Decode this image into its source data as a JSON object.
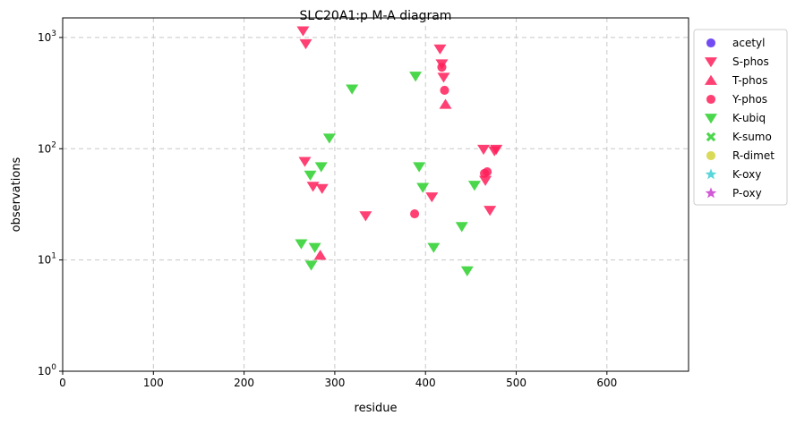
{
  "chart_data": {
    "type": "scatter",
    "title": "SLC20A1:p M-A diagram",
    "xlabel": "residue",
    "ylabel": "observations",
    "xlim": [
      0,
      690
    ],
    "ylim": [
      1,
      1500
    ],
    "yscale": "log",
    "grid": true,
    "legend_position": "outside-right",
    "x_ticks": [
      0,
      100,
      200,
      300,
      400,
      500,
      600
    ],
    "y_ticks": [
      {
        "value": 1,
        "base": "10",
        "exp": "0"
      },
      {
        "value": 10,
        "base": "10",
        "exp": "1"
      },
      {
        "value": 100,
        "base": "10",
        "exp": "2"
      },
      {
        "value": 1000,
        "base": "10",
        "exp": "3"
      }
    ],
    "series": [
      {
        "name": "acetyl",
        "marker": "circle",
        "color": "#5b2bf0",
        "points": []
      },
      {
        "name": "S-phos",
        "marker": "triangle-down",
        "color": "#ff1f5b",
        "points": [
          {
            "x": 265,
            "y": 1150
          },
          {
            "x": 268,
            "y": 880
          },
          {
            "x": 416,
            "y": 790
          },
          {
            "x": 418,
            "y": 580
          },
          {
            "x": 420,
            "y": 440
          },
          {
            "x": 267,
            "y": 77
          },
          {
            "x": 276,
            "y": 46
          },
          {
            "x": 286,
            "y": 44
          },
          {
            "x": 334,
            "y": 25
          },
          {
            "x": 407,
            "y": 37
          },
          {
            "x": 464,
            "y": 99
          },
          {
            "x": 476,
            "y": 96
          },
          {
            "x": 478,
            "y": 99
          },
          {
            "x": 466,
            "y": 52
          },
          {
            "x": 471,
            "y": 28
          }
        ]
      },
      {
        "name": "T-phos",
        "marker": "triangle-up",
        "color": "#ff1f5b",
        "points": [
          {
            "x": 422,
            "y": 250
          },
          {
            "x": 284,
            "y": 11
          }
        ]
      },
      {
        "name": "Y-phos",
        "marker": "circle",
        "color": "#ff1f5b",
        "points": [
          {
            "x": 418,
            "y": 540
          },
          {
            "x": 421,
            "y": 335
          },
          {
            "x": 465,
            "y": 60
          },
          {
            "x": 468,
            "y": 62
          },
          {
            "x": 388,
            "y": 26
          }
        ]
      },
      {
        "name": "K-ubiq",
        "marker": "triangle-down",
        "color": "#2bd02b",
        "points": [
          {
            "x": 319,
            "y": 345
          },
          {
            "x": 389,
            "y": 450
          },
          {
            "x": 294,
            "y": 125
          },
          {
            "x": 285,
            "y": 69
          },
          {
            "x": 273,
            "y": 58
          },
          {
            "x": 393,
            "y": 69
          },
          {
            "x": 397,
            "y": 45
          },
          {
            "x": 454,
            "y": 47
          },
          {
            "x": 440,
            "y": 20
          },
          {
            "x": 263,
            "y": 14
          },
          {
            "x": 278,
            "y": 13
          },
          {
            "x": 274,
            "y": 9
          },
          {
            "x": 409,
            "y": 13
          },
          {
            "x": 446,
            "y": 8
          }
        ]
      },
      {
        "name": "K-sumo",
        "marker": "x",
        "color": "#2bd02b",
        "points": []
      },
      {
        "name": "R-dimet",
        "marker": "circle",
        "color": "#d4d43c",
        "points": []
      },
      {
        "name": "K-oxy",
        "marker": "star",
        "color": "#3ccfd4",
        "points": []
      },
      {
        "name": "P-oxy",
        "marker": "star",
        "color": "#c93ccf",
        "points": []
      }
    ]
  }
}
